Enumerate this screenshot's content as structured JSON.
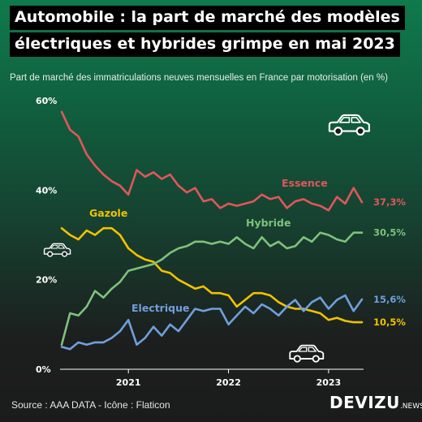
{
  "header": {
    "title_line1": "Automobile : la part de marché des modèles",
    "title_line2": "électriques et hybrides grimpe en mai 2023",
    "subtitle": "Part de marché des immatriculations neuves mensuelles en France par motorisation (en %)"
  },
  "footer": {
    "source": "Source : AAA DATA - Icône : Flaticon",
    "brand": "DEVIZU",
    "brand_suffix": ".NEWS"
  },
  "chart_data": {
    "type": "line",
    "title": "Automobile : la part de marché des modèles électriques et hybrides grimpe en mai 2023",
    "subtitle": "Part de marché des immatriculations neuves mensuelles en France par motorisation (en %)",
    "x_start": "2020-05",
    "x_end": "2023-05",
    "x_ticks": [
      "2021",
      "2022",
      "2023"
    ],
    "y_ticks": [
      "0%",
      "20%",
      "40%",
      "60%"
    ],
    "ylim": [
      0,
      60
    ],
    "grid": false,
    "series": [
      {
        "name": "Essence",
        "color": "#e0575a",
        "end_label": "37,3%",
        "values": [
          57.5,
          53.5,
          52,
          48,
          45.5,
          43.5,
          42,
          41,
          39,
          44.5,
          43,
          44,
          42.5,
          43.5,
          41,
          39.5,
          40.5,
          37.5,
          38,
          36,
          37,
          36.5,
          37,
          37.5,
          39,
          38,
          38.5,
          36,
          37.5,
          38,
          37,
          36.5,
          35.5,
          38.5,
          37,
          40.5,
          37.3
        ]
      },
      {
        "name": "Gazole",
        "color": "#f2c200",
        "end_label": "10,5%",
        "values": [
          31.5,
          30,
          29,
          31,
          30,
          31.5,
          31.5,
          30,
          27,
          25.5,
          24.5,
          24,
          22,
          21.5,
          20,
          19,
          18,
          18.5,
          17,
          17,
          16.5,
          14,
          15.5,
          17,
          17,
          16.5,
          15,
          14,
          13.5,
          13.5,
          13,
          12.5,
          11,
          11.5,
          10.8,
          10.5,
          10.5
        ]
      },
      {
        "name": "Hybride",
        "color": "#7ec27a",
        "end_label": "30,5%",
        "values": [
          5.5,
          12.5,
          12,
          14,
          17.5,
          16,
          18,
          19.5,
          22,
          22.5,
          23,
          23.5,
          24.5,
          26,
          27,
          27.5,
          28.5,
          28.5,
          28,
          28.5,
          28,
          29.5,
          28,
          27,
          29.5,
          27.5,
          28.5,
          27,
          27.5,
          29.5,
          28.5,
          30.5,
          30,
          29,
          28.5,
          30.5,
          30.5
        ]
      },
      {
        "name": "Electrique",
        "color": "#6fa0dc",
        "end_label": "15,6%",
        "values": [
          5,
          4.5,
          6,
          5.5,
          6,
          6,
          7,
          8.5,
          11,
          5.5,
          7,
          9.5,
          7.5,
          10,
          8.5,
          11,
          13.5,
          13,
          13.5,
          13.5,
          10,
          12,
          14,
          12.5,
          14.5,
          13.5,
          12,
          14,
          15.5,
          13,
          15,
          16,
          13.5,
          15.5,
          16.5,
          13,
          15.6
        ]
      }
    ],
    "annotations": [
      {
        "text": "Essence",
        "series": 0
      },
      {
        "text": "Gazole",
        "series": 1
      },
      {
        "text": "Hybride",
        "series": 2
      },
      {
        "text": "Electrique",
        "series": 3
      }
    ],
    "icons": [
      "car-icon",
      "car-icon",
      "car-icon"
    ]
  }
}
